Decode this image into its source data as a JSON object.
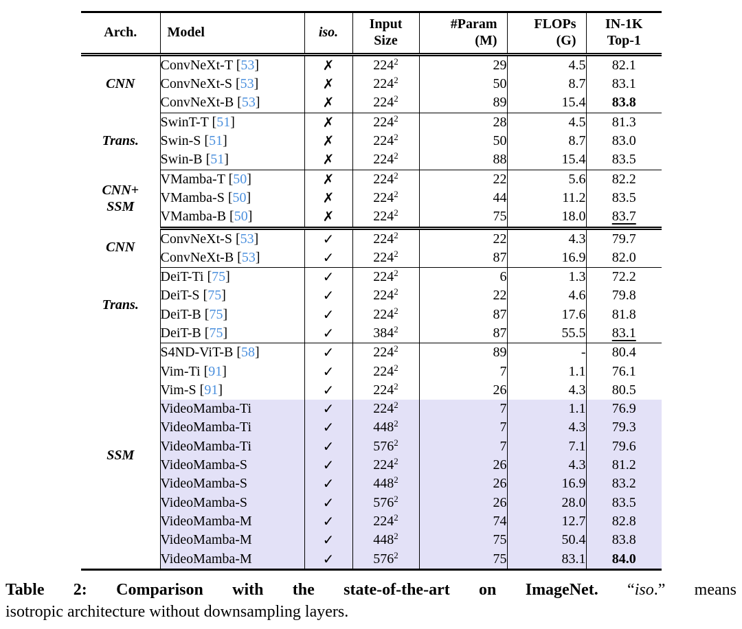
{
  "colors": {
    "citation": "#4a8fdd",
    "highlight": "#e3e1f7"
  },
  "table": {
    "header": {
      "arch": "Arch.",
      "model": "Model",
      "iso": "iso.",
      "input_l1": "Input",
      "input_l2": "Size",
      "param_l1": "#Param",
      "param_l2": "(M)",
      "flops_l1": "FLOPs",
      "flops_l2": "(G)",
      "top1_l1": "IN-1K",
      "top1_l2": "Top-1"
    },
    "glyphs": {
      "check": "✓",
      "cross": "✗",
      "squared": "2"
    },
    "groups": [
      {
        "label_lines": [
          "CNN"
        ],
        "row_count": 3,
        "divider": "single"
      },
      {
        "label_lines": [
          "Trans."
        ],
        "row_count": 3,
        "divider": "single"
      },
      {
        "label_lines": [
          "CNN+",
          "SSM"
        ],
        "row_count": 3,
        "divider": "double"
      },
      {
        "label_lines": [
          "CNN"
        ],
        "row_count": 2,
        "divider": "single"
      },
      {
        "label_lines": [
          "Trans."
        ],
        "row_count": 4,
        "divider": "single"
      },
      {
        "label_lines": [
          "SSM"
        ],
        "row_count": 12,
        "divider": "none"
      }
    ],
    "rows": [
      {
        "model": "ConvNeXt-T",
        "cite": "53",
        "iso": false,
        "input": "224",
        "param": "29",
        "flops": "4.5",
        "top1": "82.1",
        "top1_style": "",
        "highlight": false
      },
      {
        "model": "ConvNeXt-S",
        "cite": "53",
        "iso": false,
        "input": "224",
        "param": "50",
        "flops": "8.7",
        "top1": "83.1",
        "top1_style": "",
        "highlight": false
      },
      {
        "model": "ConvNeXt-B",
        "cite": "53",
        "iso": false,
        "input": "224",
        "param": "89",
        "flops": "15.4",
        "top1": "83.8",
        "top1_style": "bold",
        "highlight": false
      },
      {
        "model": "SwinT-T",
        "cite": "51",
        "iso": false,
        "input": "224",
        "param": "28",
        "flops": "4.5",
        "top1": "81.3",
        "top1_style": "",
        "highlight": false
      },
      {
        "model": "Swin-S",
        "cite": "51",
        "iso": false,
        "input": "224",
        "param": "50",
        "flops": "8.7",
        "top1": "83.0",
        "top1_style": "",
        "highlight": false
      },
      {
        "model": "Swin-B",
        "cite": "51",
        "iso": false,
        "input": "224",
        "param": "88",
        "flops": "15.4",
        "top1": "83.5",
        "top1_style": "",
        "highlight": false
      },
      {
        "model": "VMamba-T",
        "cite": "50",
        "iso": false,
        "input": "224",
        "param": "22",
        "flops": "5.6",
        "top1": "82.2",
        "top1_style": "",
        "highlight": false
      },
      {
        "model": "VMamba-S",
        "cite": "50",
        "iso": false,
        "input": "224",
        "param": "44",
        "flops": "11.2",
        "top1": "83.5",
        "top1_style": "",
        "highlight": false
      },
      {
        "model": "VMamba-B",
        "cite": "50",
        "iso": false,
        "input": "224",
        "param": "75",
        "flops": "18.0",
        "top1": "83.7",
        "top1_style": "underline",
        "highlight": false
      },
      {
        "model": "ConvNeXt-S",
        "cite": "53",
        "iso": true,
        "input": "224",
        "param": "22",
        "flops": "4.3",
        "top1": "79.7",
        "top1_style": "",
        "highlight": false
      },
      {
        "model": "ConvNeXt-B",
        "cite": "53",
        "iso": true,
        "input": "224",
        "param": "87",
        "flops": "16.9",
        "top1": "82.0",
        "top1_style": "",
        "highlight": false
      },
      {
        "model": "DeiT-Ti",
        "cite": "75",
        "iso": true,
        "input": "224",
        "param": "6",
        "flops": "1.3",
        "top1": "72.2",
        "top1_style": "",
        "highlight": false
      },
      {
        "model": "DeiT-S",
        "cite": "75",
        "iso": true,
        "input": "224",
        "param": "22",
        "flops": "4.6",
        "top1": "79.8",
        "top1_style": "",
        "highlight": false
      },
      {
        "model": "DeiT-B",
        "cite": "75",
        "iso": true,
        "input": "224",
        "param": "87",
        "flops": "17.6",
        "top1": "81.8",
        "top1_style": "",
        "highlight": false
      },
      {
        "model": "DeiT-B",
        "cite": "75",
        "iso": true,
        "input": "384",
        "param": "87",
        "flops": "55.5",
        "top1": "83.1",
        "top1_style": "underline",
        "highlight": false
      },
      {
        "model": "S4ND-ViT-B",
        "cite": "58",
        "iso": true,
        "input": "224",
        "param": "89",
        "flops": "-",
        "top1": "80.4",
        "top1_style": "",
        "highlight": false
      },
      {
        "model": "Vim-Ti",
        "cite": "91",
        "iso": true,
        "input": "224",
        "param": "7",
        "flops": "1.1",
        "top1": "76.1",
        "top1_style": "",
        "highlight": false
      },
      {
        "model": "Vim-S",
        "cite": "91",
        "iso": true,
        "input": "224",
        "param": "26",
        "flops": "4.3",
        "top1": "80.5",
        "top1_style": "",
        "highlight": false
      },
      {
        "model": "VideoMamba-Ti",
        "cite": "",
        "iso": true,
        "input": "224",
        "param": "7",
        "flops": "1.1",
        "top1": "76.9",
        "top1_style": "",
        "highlight": true
      },
      {
        "model": "VideoMamba-Ti",
        "cite": "",
        "iso": true,
        "input": "448",
        "param": "7",
        "flops": "4.3",
        "top1": "79.3",
        "top1_style": "",
        "highlight": true
      },
      {
        "model": "VideoMamba-Ti",
        "cite": "",
        "iso": true,
        "input": "576",
        "param": "7",
        "flops": "7.1",
        "top1": "79.6",
        "top1_style": "",
        "highlight": true
      },
      {
        "model": "VideoMamba-S",
        "cite": "",
        "iso": true,
        "input": "224",
        "param": "26",
        "flops": "4.3",
        "top1": "81.2",
        "top1_style": "",
        "highlight": true
      },
      {
        "model": "VideoMamba-S",
        "cite": "",
        "iso": true,
        "input": "448",
        "param": "26",
        "flops": "16.9",
        "top1": "83.2",
        "top1_style": "",
        "highlight": true
      },
      {
        "model": "VideoMamba-S",
        "cite": "",
        "iso": true,
        "input": "576",
        "param": "26",
        "flops": "28.0",
        "top1": "83.5",
        "top1_style": "",
        "highlight": true
      },
      {
        "model": "VideoMamba-M",
        "cite": "",
        "iso": true,
        "input": "224",
        "param": "74",
        "flops": "12.7",
        "top1": "82.8",
        "top1_style": "",
        "highlight": true
      },
      {
        "model": "VideoMamba-M",
        "cite": "",
        "iso": true,
        "input": "448",
        "param": "75",
        "flops": "50.4",
        "top1": "83.8",
        "top1_style": "",
        "highlight": true
      },
      {
        "model": "VideoMamba-M",
        "cite": "",
        "iso": true,
        "input": "576",
        "param": "75",
        "flops": "83.1",
        "top1": "84.0",
        "top1_style": "bold",
        "highlight": true
      }
    ]
  },
  "caption": {
    "line1_bold": "Table 2: Comparison with the state-of-the-art on ImageNet.",
    "line1_pre": " “",
    "line1_iso": "iso",
    "line1_post": ".” means",
    "line2": "isotropic architecture without downsampling layers."
  }
}
